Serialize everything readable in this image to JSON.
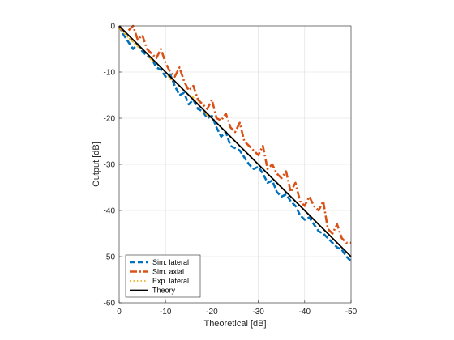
{
  "chart_data": {
    "type": "line",
    "xlabel": "Theoretical [dB]",
    "ylabel": "Output [dB]",
    "xlim": [
      0,
      -50
    ],
    "ylim": [
      -60,
      0
    ],
    "xticks": [
      0,
      -10,
      -20,
      -30,
      -40,
      -50
    ],
    "yticks": [
      0,
      -10,
      -20,
      -30,
      -40,
      -50,
      -60
    ],
    "grid": true,
    "legend_position": "bottom-left",
    "series": [
      {
        "name": "Sim. lateral",
        "color": "#0072BD",
        "style": "dashed",
        "x": [
          0,
          -1,
          -2,
          -3,
          -4,
          -5,
          -6,
          -7,
          -8,
          -9,
          -10,
          -11,
          -12,
          -13,
          -14,
          -15,
          -16,
          -17,
          -18,
          -19,
          -20,
          -21,
          -22,
          -23,
          -24,
          -25,
          -26,
          -27,
          -28,
          -29,
          -30,
          -31,
          -32,
          -33,
          -34,
          -35,
          -36,
          -37,
          -38,
          -39,
          -40,
          -41,
          -42,
          -43,
          -44,
          -45,
          -46,
          -47,
          -48,
          -49,
          -50
        ],
        "y": [
          0,
          -2,
          -3.5,
          -5,
          -4,
          -5.5,
          -6.5,
          -7,
          -9,
          -9.5,
          -11,
          -10.5,
          -13,
          -15,
          -14.5,
          -17,
          -16,
          -18,
          -18.5,
          -20,
          -19.5,
          -22,
          -24,
          -23,
          -26,
          -26.5,
          -27,
          -28.5,
          -30,
          -31,
          -30.5,
          -32,
          -34,
          -33.5,
          -36,
          -37,
          -36.5,
          -38,
          -39,
          -41,
          -42,
          -41.5,
          -43,
          -44.5,
          -45,
          -46,
          -47,
          -48,
          -48.5,
          -50,
          -51
        ]
      },
      {
        "name": "Sim. axial",
        "color": "#D95319",
        "style": "dashdot",
        "x": [
          0,
          -1,
          -2,
          -3,
          -4,
          -5,
          -6,
          -7,
          -8,
          -9,
          -10,
          -11,
          -12,
          -13,
          -14,
          -15,
          -16,
          -17,
          -18,
          -19,
          -20,
          -21,
          -22,
          -23,
          -24,
          -25,
          -26,
          -27,
          -28,
          -29,
          -30,
          -31,
          -32,
          -33,
          -34,
          -35,
          -36,
          -37,
          -38,
          -39,
          -40,
          -41,
          -42,
          -43,
          -44,
          -45,
          -46,
          -47,
          -48,
          -49,
          -50
        ],
        "y": [
          0,
          -1.5,
          -1,
          0,
          -3,
          -2,
          -5,
          -6,
          -7,
          -5,
          -8,
          -10,
          -11,
          -9,
          -12,
          -14,
          -13,
          -16,
          -17,
          -18,
          -16,
          -20,
          -20.5,
          -19,
          -22,
          -23,
          -21,
          -25,
          -26,
          -27,
          -28,
          -26,
          -31,
          -30,
          -32,
          -33,
          -31.5,
          -36,
          -34,
          -38,
          -39,
          -37,
          -39,
          -40,
          -38,
          -44,
          -45,
          -43,
          -46,
          -47,
          -47
        ]
      },
      {
        "name": "Exp. lateral",
        "color": "#EDB120",
        "style": "dotted",
        "x": [
          0,
          -1,
          -2,
          -3,
          -4,
          -5,
          -6,
          -7,
          -8,
          -9,
          -10,
          -11,
          -12,
          -13,
          -14,
          -15,
          -16,
          -17,
          -18,
          -19,
          -20,
          -21,
          -22,
          -23,
          -24,
          -25,
          -26,
          -27,
          -28,
          -29,
          -30,
          -31,
          -32,
          -33,
          -34,
          -35,
          -36,
          -37,
          -38,
          -39,
          -40,
          -41,
          -42,
          -43,
          -44,
          -45,
          -46,
          -47,
          -48,
          -49,
          -50
        ],
        "y": [
          -0.5,
          -1.5,
          -2.5,
          -3.5,
          -4.5,
          -5,
          -6,
          -7.5,
          -8,
          -9,
          -10,
          -11.5,
          -12,
          -13,
          -14,
          -15,
          -15.5,
          -17,
          -18,
          -19.5,
          -20,
          -21,
          -22,
          -23,
          -24,
          -25,
          -26,
          -27,
          -28,
          -29,
          -30,
          -31,
          -32,
          -33,
          -34,
          -35,
          -36,
          -37,
          -38,
          -39,
          -40,
          -41,
          -42,
          -43,
          -44,
          -45,
          -46,
          -47,
          -48,
          -49,
          -50
        ]
      },
      {
        "name": "Theory",
        "color": "#000000",
        "style": "solid",
        "x": [
          0,
          -50
        ],
        "y": [
          0,
          -50
        ]
      }
    ]
  }
}
